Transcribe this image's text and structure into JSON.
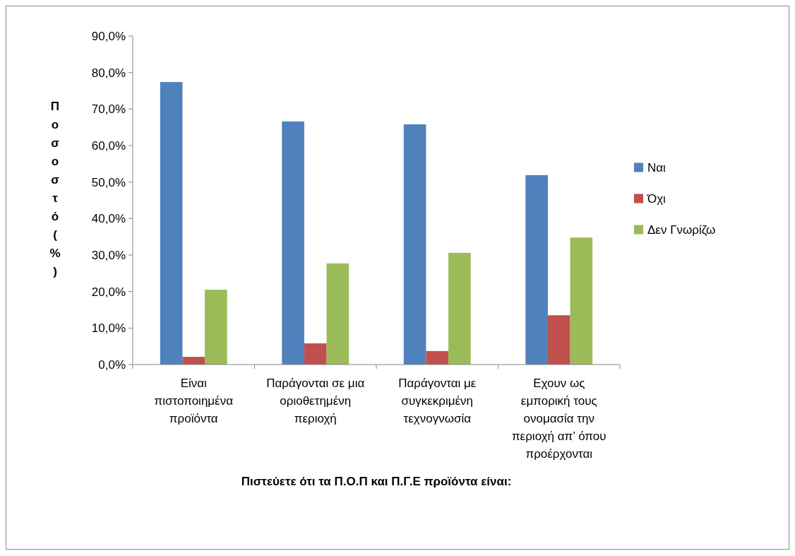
{
  "chart_data": {
    "type": "bar",
    "xlabel": "Πιστεύετε ότι τα Π.Ο.Π και Π.Γ.Ε προϊόντα είναι:",
    "ylabel": "Ποσοστό (%)",
    "categories": [
      "Είναι πιστοποιημένα προϊόντα",
      "Παράγονται σε μια οριοθετημένη περιοχή",
      "Παράγονται με συγκεκριμένη τεχνογνωσία",
      "Εχουν ως εμπορική τους ονομασία την περιοχή απ’ όπου προέρχονται"
    ],
    "series": [
      {
        "name": "Ναι",
        "color": "#4f81bd",
        "values": [
          77.4,
          66.6,
          65.8,
          51.9
        ]
      },
      {
        "name": "Όχι",
        "color": "#c0504d",
        "values": [
          2.1,
          5.8,
          3.7,
          13.5
        ]
      },
      {
        "name": "Δεν Γνωρίζω",
        "color": "#9bbb59",
        "values": [
          20.5,
          27.7,
          30.6,
          34.8
        ]
      }
    ],
    "ylim": [
      0,
      90
    ],
    "yticks": [
      {
        "value": 0,
        "label": "0,0%"
      },
      {
        "value": 10,
        "label": "10,0%"
      },
      {
        "value": 20,
        "label": "20,0%"
      },
      {
        "value": 30,
        "label": "30,0%"
      },
      {
        "value": 40,
        "label": "40,0%"
      },
      {
        "value": 50,
        "label": "50,0%"
      },
      {
        "value": 60,
        "label": "60,0%"
      },
      {
        "value": 70,
        "label": "70,0%"
      },
      {
        "value": 80,
        "label": "80,0%"
      },
      {
        "value": 90,
        "label": "90,0%"
      }
    ],
    "grid": false,
    "legend": "right"
  }
}
